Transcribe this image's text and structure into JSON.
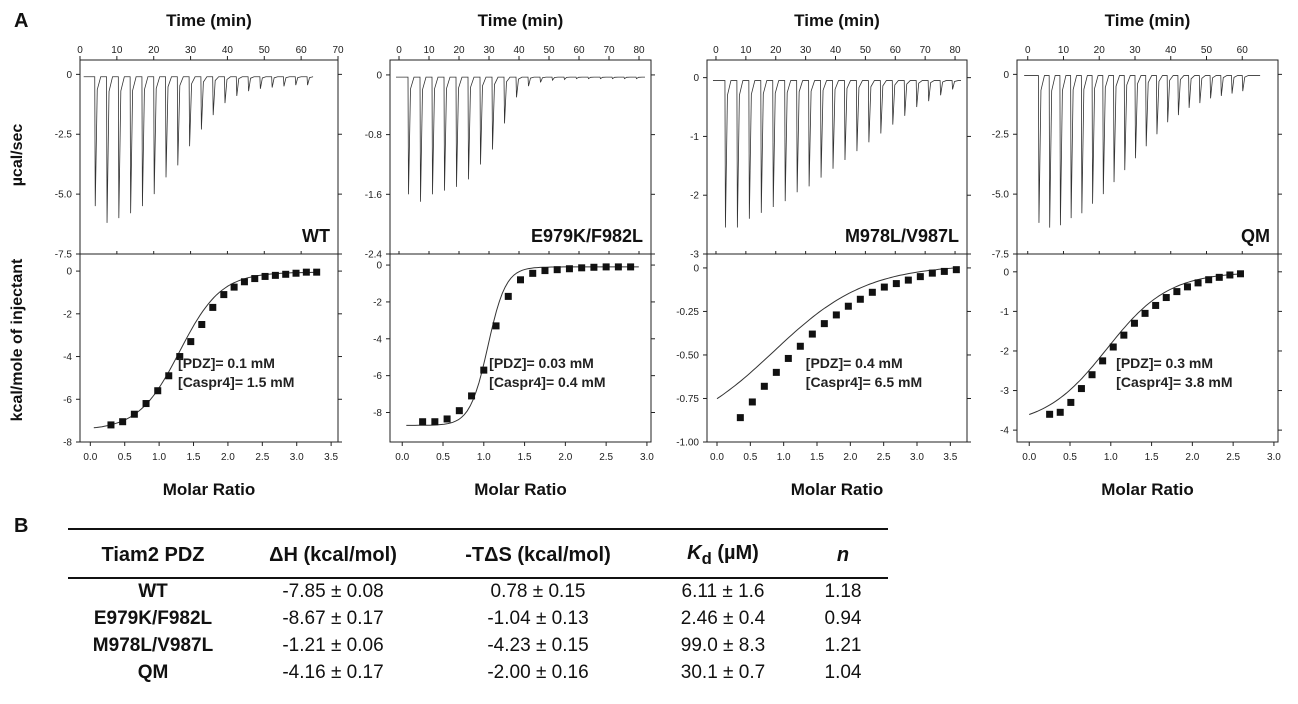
{
  "panel_a_label": "A",
  "panel_b_label": "B",
  "top_axis_label": "Time (min)",
  "top_y_label": "µcal/sec",
  "bottom_y_label": "kcal/mole of injectant",
  "bottom_x_label": "Molar Ratio",
  "chart_data": [
    {
      "type": "line",
      "name": "WT",
      "title": "WT",
      "annotation_1": "[PDZ]= 0.1 mM",
      "annotation_2": "[Caspr4]= 1.5 mM",
      "raw": {
        "xlabel": "Time (min)",
        "ylabel": "µcal/sec",
        "xlim": [
          0,
          70
        ],
        "ylim": [
          -7.5,
          0.6
        ],
        "xticks": [
          0,
          10,
          20,
          30,
          40,
          50,
          60,
          70
        ],
        "yticks": [
          0,
          -2.5,
          -5.0,
          -7.5
        ],
        "ytick_labels": [
          "0",
          "-2.5",
          "-5.0",
          "-7.5"
        ],
        "baseline": -0.1,
        "start_time": 1,
        "end_time": 63,
        "injection_times": [
          4,
          7.2,
          10.4,
          13.6,
          16.8,
          20,
          23.2,
          26.4,
          29.6,
          32.8,
          36,
          39.2,
          42.4,
          45.6,
          48.8,
          52,
          55.2,
          58.4,
          61.6
        ],
        "peak_heights": [
          -5.5,
          -6.2,
          -6.0,
          -5.8,
          -5.5,
          -5.0,
          -4.3,
          -3.8,
          -3.0,
          -2.3,
          -1.7,
          -1.2,
          -0.9,
          -0.7,
          -0.6,
          -0.55,
          -0.5,
          -0.45,
          -0.45
        ]
      },
      "integrated": {
        "xlabel": "Molar Ratio",
        "ylabel": "kcal/mole of injectant",
        "xlim": [
          -0.15,
          3.6
        ],
        "ylim": [
          -8,
          0.8
        ],
        "xticks": [
          0.0,
          0.5,
          1.0,
          1.5,
          2.0,
          2.5,
          3.0,
          3.5
        ],
        "xtick_labels": [
          "0.0",
          "0.5",
          "1.0",
          "1.5",
          "2.0",
          "2.5",
          "3.0",
          "3.5"
        ],
        "yticks": [
          0,
          -2,
          -4,
          -6,
          -8
        ],
        "ytick_labels": [
          "0",
          "-2",
          "-4",
          "-6",
          "-8"
        ],
        "x": [
          0.3,
          0.47,
          0.64,
          0.81,
          0.98,
          1.14,
          1.3,
          1.46,
          1.62,
          1.78,
          1.94,
          2.09,
          2.24,
          2.39,
          2.54,
          2.69,
          2.84,
          2.99,
          3.14,
          3.29
        ],
        "y": [
          -7.2,
          -7.05,
          -6.7,
          -6.2,
          -5.6,
          -4.9,
          -4.0,
          -3.3,
          -2.5,
          -1.7,
          -1.1,
          -0.75,
          -0.5,
          -0.35,
          -0.25,
          -0.2,
          -0.15,
          -0.1,
          -0.05,
          -0.05
        ],
        "fit": {
          "top": -0.05,
          "bottom": -7.45,
          "mid": 1.3,
          "width": 0.3,
          "x_start": 0.05,
          "x_end": 3.3
        }
      }
    },
    {
      "type": "line",
      "name": "E979K/F982L",
      "title": "E979K/F982L",
      "annotation_1": "[PDZ]= 0.03 mM",
      "annotation_2": "[Caspr4]= 0.4 mM",
      "raw": {
        "xlabel": "Time (min)",
        "ylabel": "µcal/sec",
        "xlim": [
          -3,
          84
        ],
        "ylim": [
          -2.4,
          0.2
        ],
        "xticks": [
          0,
          10,
          20,
          30,
          40,
          50,
          60,
          70,
          80
        ],
        "yticks": [
          0,
          -0.8,
          -1.6,
          -2.4
        ],
        "ytick_labels": [
          "0",
          "-0.8",
          "-1.6",
          "-2.4"
        ],
        "baseline": -0.03,
        "start_time": -1,
        "end_time": 82,
        "injection_times": [
          3,
          7,
          11,
          15,
          19,
          23,
          27,
          31,
          35,
          39,
          43,
          47,
          51,
          55,
          59,
          63,
          67,
          71,
          75,
          79
        ],
        "peak_heights": [
          -1.6,
          -1.7,
          -1.6,
          -1.55,
          -1.5,
          -1.4,
          -1.2,
          -1.0,
          -0.65,
          -0.3,
          -0.15,
          -0.1,
          -0.07,
          -0.06,
          -0.05,
          -0.05,
          -0.05,
          -0.05,
          -0.05,
          -0.05
        ]
      },
      "integrated": {
        "xlabel": "Molar Ratio",
        "ylabel": "kcal/mole of injectant",
        "xlim": [
          -0.15,
          3.05
        ],
        "ylim": [
          -9.6,
          0.6
        ],
        "xticks": [
          0.0,
          0.5,
          1.0,
          1.5,
          2.0,
          2.5,
          3.0
        ],
        "xtick_labels": [
          "0.0",
          "0.5",
          "1.0",
          "1.5",
          "2.0",
          "2.5",
          "3.0"
        ],
        "yticks": [
          0,
          -2,
          -4,
          -6,
          -8
        ],
        "ytick_labels": [
          "0",
          "-2",
          "-4",
          "-6",
          "-8"
        ],
        "x": [
          0.25,
          0.4,
          0.55,
          0.7,
          0.85,
          1.0,
          1.15,
          1.3,
          1.45,
          1.6,
          1.75,
          1.9,
          2.05,
          2.2,
          2.35,
          2.5,
          2.65,
          2.8
        ],
        "y": [
          -8.5,
          -8.5,
          -8.35,
          -7.9,
          -7.1,
          -5.7,
          -3.3,
          -1.7,
          -0.8,
          -0.45,
          -0.3,
          -0.25,
          -0.2,
          -0.15,
          -0.12,
          -0.1,
          -0.1,
          -0.1
        ],
        "fit": {
          "top": -0.1,
          "bottom": -8.7,
          "mid": 1.05,
          "width": 0.11,
          "x_start": 0.05,
          "x_end": 2.9
        }
      }
    },
    {
      "type": "line",
      "name": "M978L/V987L",
      "title": "M978L/V987L",
      "annotation_1": "[PDZ]= 0.4 mM",
      "annotation_2": "[Caspr4]= 6.5 mM",
      "raw": {
        "xlabel": "Time (min)",
        "ylabel": "µcal/sec",
        "xlim": [
          -3,
          84
        ],
        "ylim": [
          -3,
          0.3
        ],
        "xticks": [
          0,
          10,
          20,
          30,
          40,
          50,
          60,
          70,
          80
        ],
        "yticks": [
          0,
          -1,
          -2,
          -3
        ],
        "ytick_labels": [
          "0",
          "-1",
          "-2",
          "-3"
        ],
        "baseline": -0.05,
        "start_time": -1,
        "end_time": 82,
        "injection_times": [
          3,
          7,
          11,
          15,
          19,
          23,
          27,
          31,
          35,
          39,
          43,
          47,
          51,
          55,
          59,
          63,
          67,
          71,
          75,
          79
        ],
        "peak_heights": [
          -2.55,
          -2.55,
          -2.4,
          -2.3,
          -2.2,
          -2.1,
          -1.95,
          -1.85,
          -1.7,
          -1.55,
          -1.4,
          -1.25,
          -1.1,
          -0.95,
          -0.8,
          -0.65,
          -0.5,
          -0.4,
          -0.3,
          -0.2
        ]
      },
      "integrated": {
        "xlabel": "Molar Ratio",
        "ylabel": "kcal/mole of injectant",
        "xlim": [
          -0.15,
          3.75
        ],
        "ylim": [
          -1.0,
          0.08
        ],
        "xticks": [
          0.0,
          0.5,
          1.0,
          1.5,
          2.0,
          2.5,
          3.0,
          3.5
        ],
        "xtick_labels": [
          "0.0",
          "0.5",
          "1.0",
          "1.5",
          "2.0",
          "2.5",
          "3.0",
          "3.5"
        ],
        "yticks": [
          0,
          -0.25,
          -0.5,
          -0.75,
          -1.0
        ],
        "ytick_labels": [
          "0",
          "-0.25",
          "-0.50",
          "-0.75",
          "-1.00"
        ],
        "x": [
          0.35,
          0.53,
          0.71,
          0.89,
          1.07,
          1.25,
          1.43,
          1.61,
          1.79,
          1.97,
          2.15,
          2.33,
          2.51,
          2.69,
          2.87,
          3.05,
          3.23,
          3.41,
          3.59
        ],
        "y": [
          -0.86,
          -0.77,
          -0.68,
          -0.6,
          -0.52,
          -0.45,
          -0.38,
          -0.32,
          -0.27,
          -0.22,
          -0.18,
          -0.14,
          -0.11,
          -0.09,
          -0.07,
          -0.05,
          -0.03,
          -0.02,
          -0.01
        ],
        "fit": {
          "top": 0.02,
          "bottom": -0.98,
          "mid": 0.85,
          "width": 0.7,
          "x_start": 0.0,
          "x_end": 3.6
        }
      }
    },
    {
      "type": "line",
      "name": "QM",
      "title": "QM",
      "annotation_1": "[PDZ]= 0.3 mM",
      "annotation_2": "[Caspr4]= 3.8 mM",
      "raw": {
        "xlabel": "Time (min)",
        "ylabel": "µcal/sec",
        "xlim": [
          -3,
          70
        ],
        "ylim": [
          -7.5,
          0.6
        ],
        "xticks": [
          0,
          10,
          20,
          30,
          40,
          50,
          60
        ],
        "yticks": [
          0,
          -2.5,
          -5.0,
          -7.5
        ],
        "ytick_labels": [
          "0",
          "-2.5",
          "-5.0",
          "-7.5"
        ],
        "baseline": -0.05,
        "start_time": -1,
        "end_time": 65,
        "injection_times": [
          3,
          6,
          9,
          12,
          15,
          18,
          21,
          24,
          27,
          30,
          33,
          36,
          39,
          42,
          45,
          48,
          51,
          54,
          57,
          60
        ],
        "peak_heights": [
          -6.2,
          -6.4,
          -6.3,
          -6.0,
          -5.8,
          -5.4,
          -5.0,
          -4.5,
          -4.0,
          -3.5,
          -3.0,
          -2.5,
          -2.0,
          -1.7,
          -1.4,
          -1.2,
          -1.0,
          -0.9,
          -0.8,
          -0.7
        ]
      },
      "integrated": {
        "xlabel": "Molar Ratio",
        "ylabel": "kcal/mole of injectant",
        "xlim": [
          -0.15,
          3.05
        ],
        "ylim": [
          -4.3,
          0.45
        ],
        "xticks": [
          0.0,
          0.5,
          1.0,
          1.5,
          2.0,
          2.5,
          3.0
        ],
        "xtick_labels": [
          "0.0",
          "0.5",
          "1.0",
          "1.5",
          "2.0",
          "2.5",
          "3.0"
        ],
        "yticks": [
          0,
          -1,
          -2,
          -3,
          -4
        ],
        "ytick_labels": [
          "0",
          "-1",
          "-2",
          "-3",
          "-4"
        ],
        "x": [
          0.25,
          0.38,
          0.51,
          0.64,
          0.77,
          0.9,
          1.03,
          1.16,
          1.29,
          1.42,
          1.55,
          1.68,
          1.81,
          1.94,
          2.07,
          2.2,
          2.33,
          2.46,
          2.59
        ],
        "y": [
          -3.6,
          -3.55,
          -3.3,
          -2.95,
          -2.6,
          -2.25,
          -1.9,
          -1.6,
          -1.3,
          -1.05,
          -0.85,
          -0.65,
          -0.5,
          -0.38,
          -0.28,
          -0.2,
          -0.14,
          -0.08,
          -0.05
        ],
        "fit": {
          "top": 0.0,
          "bottom": -3.9,
          "mid": 0.95,
          "width": 0.38,
          "x_start": 0.0,
          "x_end": 2.6
        }
      }
    }
  ],
  "table": {
    "headers": {
      "construct": "Tiam2 PDZ",
      "dh": "ΔH (kcal/mol)",
      "tds": "-TΔS (kcal/mol)",
      "kd_k": "K",
      "kd_sub": "d",
      "kd_unit": " (µM)",
      "n": "n"
    },
    "rows": [
      {
        "name": "WT",
        "dh": "-7.85 ± 0.08",
        "tds": "0.78 ± 0.15",
        "kd": "6.11 ± 1.6",
        "n": "1.18"
      },
      {
        "name": "E979K/F982L",
        "dh": "-8.67 ± 0.17",
        "tds": "-1.04 ± 0.13",
        "kd": "2.46 ± 0.4",
        "n": "0.94"
      },
      {
        "name": "M978L/V987L",
        "dh": "-1.21 ± 0.06",
        "tds": "-4.23 ± 0.15",
        "kd": "99.0 ± 8.3",
        "n": "1.21"
      },
      {
        "name": "QM",
        "dh": "-4.16 ± 0.17",
        "tds": "-2.00 ± 0.16",
        "kd": "30.1 ± 0.7",
        "n": "1.04"
      }
    ]
  }
}
